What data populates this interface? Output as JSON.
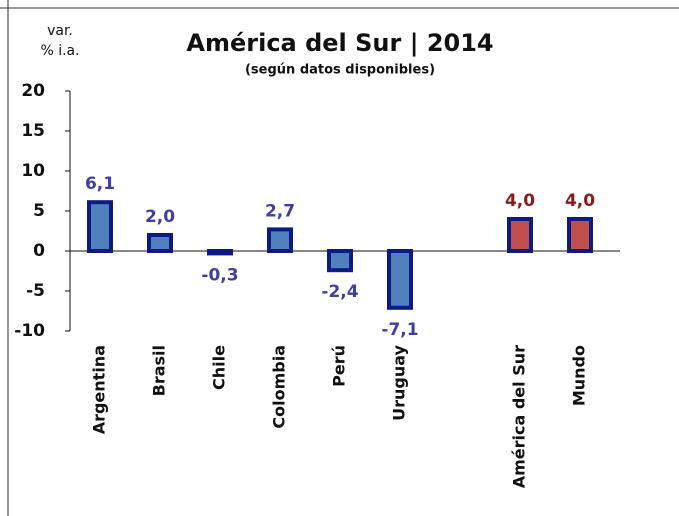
{
  "chart_data": {
    "type": "bar",
    "title": "América del Sur | 2014",
    "subtitle": "(según datos disponibles)",
    "y_label": [
      "var.",
      "% i.a."
    ],
    "categories": [
      "Argentina",
      "Brasil",
      "Chile",
      "Colombia",
      "Perú",
      "Uruguay",
      null,
      "América del Sur",
      "Mundo"
    ],
    "values": [
      6.1,
      2.0,
      -0.3,
      2.7,
      -2.4,
      -7.1,
      null,
      4.0,
      4.0
    ],
    "value_labels": [
      "6,1",
      "2,0",
      "-0,3",
      "2,7",
      "-2,4",
      "-7,1",
      null,
      "4,0",
      "4,0"
    ],
    "colors": [
      "#4f81bd",
      "#4f81bd",
      "#4f81bd",
      "#4f81bd",
      "#4f81bd",
      "#4f81bd",
      null,
      "#c0504d",
      "#c0504d"
    ],
    "label_colors": [
      "#3f3f9f",
      "#3f3f9f",
      "#3f3f9f",
      "#3f3f9f",
      "#3f3f9f",
      "#3f3f9f",
      null,
      "#8b1a1a",
      "#8b1a1a"
    ],
    "outline_color": "#0d1a80",
    "ylim": [
      -10,
      20
    ],
    "yticks": [
      -10,
      -5,
      0,
      5,
      10,
      15,
      20
    ],
    "grid": false
  }
}
